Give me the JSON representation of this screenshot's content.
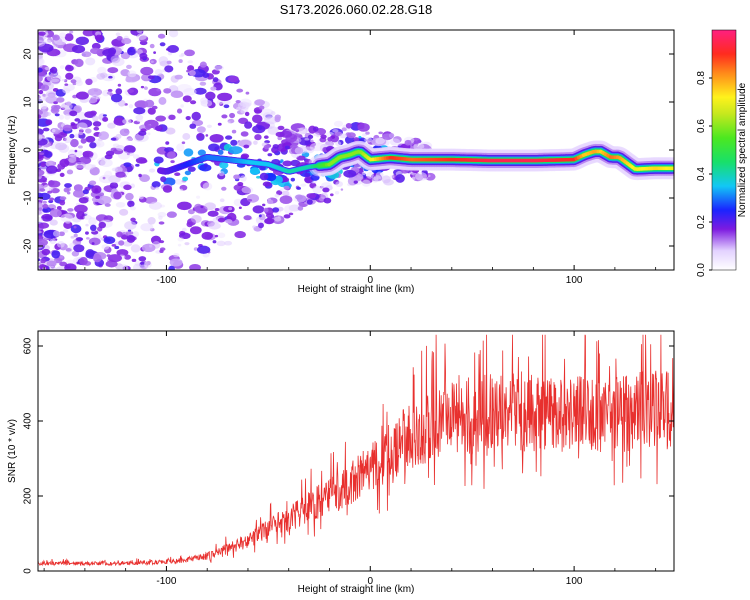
{
  "page_title": "S173.2026.060.02.28.G18",
  "chart_data": [
    {
      "id": "spectrogram",
      "type": "heatmap",
      "title": "S173.2026.060.02.28.G18",
      "xlabel": "Height of straight line (km)",
      "ylabel": "Frequency (Hz)",
      "xlim": [
        -163,
        149
      ],
      "ylim": [
        -25,
        25
      ],
      "xticks": [
        -100,
        0,
        100
      ],
      "xtick_labels": [
        "-100",
        "0",
        "100"
      ],
      "yticks": [
        -20,
        -10,
        0,
        10,
        20
      ],
      "ytick_labels": [
        "-20",
        "-10",
        "0",
        "10",
        "20"
      ],
      "grid": false,
      "colorbar": {
        "label": "Normalized spectral amplitude",
        "range": [
          0,
          1
        ],
        "ticks": [
          0.0,
          0.2,
          0.4,
          0.6,
          0.8
        ],
        "tick_labels": [
          "0.0",
          "0.2",
          "0.4",
          "0.6",
          "0.8"
        ]
      },
      "ridge": {
        "x": [
          -163,
          -140,
          -120,
          -100,
          -90,
          -80,
          -70,
          -60,
          -50,
          -40,
          -30,
          -20,
          -15,
          -10,
          -7,
          -5,
          0,
          10,
          20,
          40,
          60,
          80,
          100,
          105,
          110,
          113,
          118,
          122,
          130,
          140,
          149
        ],
        "y": [
          -3,
          -3,
          -3,
          -4.5,
          -3,
          -1.5,
          -2,
          -2.5,
          -3,
          -4.5,
          -3.5,
          -3,
          -1.5,
          -1,
          -0.5,
          -0.3,
          -2,
          -1.6,
          -2,
          -2,
          -2.2,
          -2.2,
          -2,
          -1,
          -0.3,
          -0.3,
          -1.5,
          -1.5,
          -4,
          -3.8,
          -3.8
        ],
        "amplitude": [
          0.05,
          0.08,
          0.1,
          0.2,
          0.25,
          0.3,
          0.3,
          0.35,
          0.35,
          0.4,
          0.4,
          0.6,
          0.6,
          0.6,
          0.6,
          0.6,
          0.7,
          0.9,
          0.85,
          0.9,
          0.95,
          0.95,
          0.9,
          0.75,
          0.8,
          0.75,
          0.85,
          0.8,
          0.7,
          0.75,
          0.7
        ]
      }
    },
    {
      "id": "snr",
      "type": "line",
      "xlabel": "Height of straight line (km)",
      "ylabel": "SNR (10 * v/v)",
      "xlim": [
        -163,
        149
      ],
      "ylim": [
        0,
        640
      ],
      "xticks": [
        -100,
        0,
        100
      ],
      "xtick_labels": [
        "-100",
        "0",
        "100"
      ],
      "yticks": [
        0,
        200,
        400,
        600
      ],
      "ytick_labels": [
        "0",
        "200",
        "400",
        "600"
      ],
      "color": "#e8302e",
      "grid": false,
      "trend": {
        "x": [
          -163,
          -130,
          -110,
          -100,
          -90,
          -80,
          -70,
          -60,
          -50,
          -40,
          -30,
          -20,
          -10,
          0,
          10,
          20,
          30,
          40,
          60,
          80,
          100,
          120,
          140,
          149
        ],
        "y": [
          20,
          20,
          22,
          25,
          30,
          40,
          60,
          80,
          110,
          140,
          170,
          200,
          230,
          270,
          320,
          360,
          390,
          420,
          420,
          425,
          415,
          420,
          430,
          430
        ]
      },
      "noise_amplitude": 0.25,
      "spike_peak": 630
    }
  ],
  "colors": {
    "snr_line": "#e8302e",
    "axis": "#000000",
    "background": "#ffffff"
  }
}
